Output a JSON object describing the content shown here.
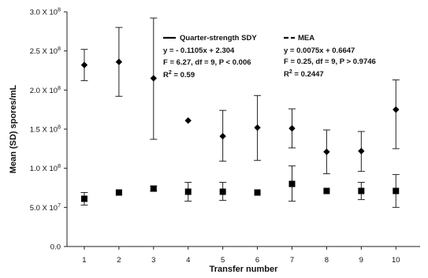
{
  "chart_data": {
    "type": "scatter",
    "xlabel": "Transfer number",
    "ylabel": "Mean (SD) spores/mL",
    "x": [
      1,
      2,
      3,
      4,
      5,
      6,
      7,
      8,
      9,
      10
    ],
    "xlim": [
      0.5,
      10.7
    ],
    "ylim": [
      0,
      30000000
    ],
    "ytick_values": [
      0,
      5000000,
      10000000,
      15000000,
      20000000,
      25000000,
      30000000
    ],
    "ytick_labels": [
      {
        "text": "0.0",
        "mant": "",
        "exp": ""
      },
      {
        "text": "",
        "mant": "5.0 X 10",
        "exp": "7"
      },
      {
        "text": "",
        "mant": "1.0 X 10",
        "exp": "8"
      },
      {
        "text": "",
        "mant": "1.5 X 10",
        "exp": "8"
      },
      {
        "text": "",
        "mant": "2.0 X 10",
        "exp": "8"
      },
      {
        "text": "",
        "mant": "2.5 X 10",
        "exp": "8"
      },
      {
        "text": "",
        "mant": "3.0 X 10",
        "exp": "8"
      }
    ],
    "series": [
      {
        "name": "Quarter-strength SDY",
        "marker": "diamond",
        "line_style": "solid",
        "values": [
          23200000,
          23600000,
          21500000,
          16100000,
          14100000,
          15200000,
          15100000,
          12100000,
          12200000,
          17500000
        ],
        "err_low": [
          21200000,
          19200000,
          13700000,
          null,
          10900000,
          11000000,
          12600000,
          9300000,
          9600000,
          12500000
        ],
        "err_high": [
          25200000,
          28000000,
          29200000,
          null,
          17400000,
          19300000,
          17600000,
          14900000,
          14700000,
          21300000
        ],
        "fit": {
          "slope": -0.1105,
          "intercept": 2.304
        },
        "annotation": {
          "label": "Quarter-strength SDY",
          "equation": "y = - 0.1105x + 2.304",
          "stats": "F = 6.27, df = 9, P < 0.006",
          "r2_prefix": "R",
          "r2_exp": "2",
          "r2_value": " = 0.59"
        }
      },
      {
        "name": "MEA",
        "marker": "square",
        "line_style": "dashed",
        "values": [
          6100000,
          6900000,
          7400000,
          7000000,
          7000000,
          6900000,
          8000000,
          7100000,
          7100000,
          7100000
        ],
        "err_low": [
          5300000,
          null,
          7100000,
          5800000,
          5900000,
          null,
          5800000,
          null,
          6000000,
          5000000
        ],
        "err_high": [
          6900000,
          null,
          7700000,
          8200000,
          8200000,
          null,
          10300000,
          null,
          8200000,
          9200000
        ],
        "fit": {
          "slope": 0.0075,
          "intercept": 0.6647
        },
        "annotation": {
          "label": "MEA",
          "equation": "y = 0.0075x + 0.6647",
          "stats": "F = 0.25, df = 9, P > 0.9746",
          "r2_prefix": "R",
          "r2_exp": "2",
          "r2_value": " = 0.2447"
        }
      }
    ]
  }
}
